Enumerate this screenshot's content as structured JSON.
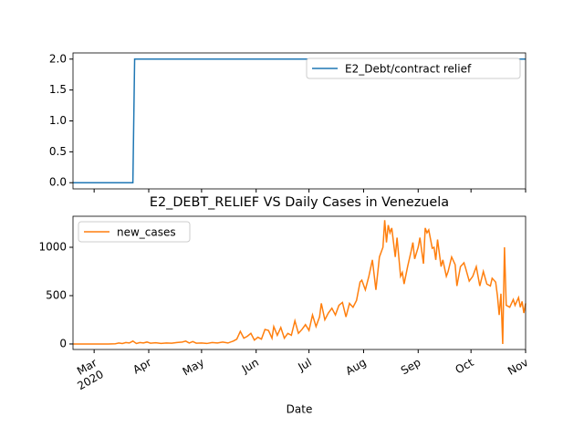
{
  "chart_data": [
    {
      "type": "line",
      "legend": "upper right",
      "x": [
        48,
        82,
        83,
        305
      ],
      "series": [
        {
          "name": "E2_Debt/contract relief",
          "color": "#1f77b4",
          "values": [
            0,
            0,
            2,
            2
          ]
        }
      ],
      "xlim": [
        48,
        305
      ],
      "ylim": [
        -0.1,
        2.1
      ],
      "yticks": [
        {
          "value": 0,
          "label": "0.0"
        },
        0.5,
        {
          "value": 1,
          "label": "1.0"
        },
        1.5,
        {
          "value": 2,
          "label": "2.0"
        }
      ]
    },
    {
      "type": "line",
      "legend": "upper left",
      "title": "E2_DEBT_RELIEF VS Daily Cases in Venezuela",
      "xlabel": "Date",
      "x": [
        48,
        52,
        56,
        60,
        64,
        68,
        72,
        74,
        76,
        78,
        80,
        82,
        84,
        86,
        88,
        90,
        92,
        95,
        98,
        101,
        104,
        107,
        110,
        112,
        114,
        116,
        118,
        121,
        124,
        127,
        130,
        133,
        136,
        139,
        141,
        143,
        145,
        147,
        149,
        151,
        153,
        155,
        157,
        159,
        161,
        162,
        164,
        166,
        168,
        170,
        172,
        174,
        176,
        178,
        180,
        182,
        184,
        186,
        188,
        189,
        191,
        193,
        195,
        197,
        199,
        201,
        203,
        205,
        207,
        209,
        211,
        212,
        214,
        216,
        218,
        220,
        222,
        224,
        225,
        226,
        227,
        228,
        229,
        231,
        232,
        234,
        235,
        236,
        238,
        240,
        241,
        242,
        244,
        245,
        247,
        248,
        249,
        250,
        252,
        253,
        254,
        255,
        257,
        258,
        260,
        261,
        263,
        265,
        266,
        268,
        270,
        271,
        273,
        275,
        277,
        279,
        281,
        283,
        285,
        286,
        288,
        289,
        290,
        291,
        292,
        293,
        294,
        296,
        298,
        299,
        301,
        302,
        303,
        304,
        305
      ],
      "series": [
        {
          "name": "new_cases",
          "color": "#ff7f0e",
          "values": [
            0,
            0,
            0,
            0,
            0,
            0,
            2,
            10,
            5,
            15,
            10,
            30,
            5,
            15,
            10,
            20,
            8,
            12,
            5,
            10,
            8,
            15,
            20,
            30,
            10,
            25,
            8,
            10,
            5,
            15,
            10,
            20,
            10,
            30,
            50,
            130,
            60,
            80,
            110,
            40,
            70,
            50,
            150,
            140,
            60,
            180,
            90,
            170,
            60,
            110,
            90,
            240,
            110,
            150,
            200,
            140,
            300,
            180,
            280,
            420,
            250,
            320,
            370,
            300,
            400,
            430,
            280,
            420,
            380,
            450,
            640,
            660,
            560,
            700,
            870,
            560,
            900,
            1000,
            1280,
            1050,
            1230,
            1150,
            1200,
            900,
            1100,
            700,
            740,
            620,
            800,
            960,
            1050,
            880,
            1000,
            1100,
            830,
            1200,
            1150,
            1180,
            990,
            1000,
            870,
            1080,
            800,
            870,
            700,
            750,
            900,
            820,
            600,
            800,
            840,
            780,
            650,
            700,
            800,
            600,
            750,
            620,
            600,
            680,
            640,
            500,
            300,
            520,
            0,
            1000,
            400,
            380,
            460,
            400,
            480,
            380,
            440,
            320,
            420
          ]
        }
      ],
      "xlim": [
        48,
        305
      ],
      "xticks": [
        {
          "value": 60,
          "label": "Mar\n2020"
        },
        {
          "value": 91,
          "label": "Apr"
        },
        {
          "value": 121,
          "label": "May"
        },
        {
          "value": 152,
          "label": "Jun"
        },
        {
          "value": 182,
          "label": "Jul"
        },
        {
          "value": 213,
          "label": "Aug"
        },
        {
          "value": 244,
          "label": "Sep"
        },
        {
          "value": 274,
          "label": "Oct"
        },
        {
          "value": 305,
          "label": "Nov"
        }
      ],
      "ylim": [
        -57,
        1321
      ],
      "yticks": [
        0,
        500,
        1000
      ]
    }
  ]
}
